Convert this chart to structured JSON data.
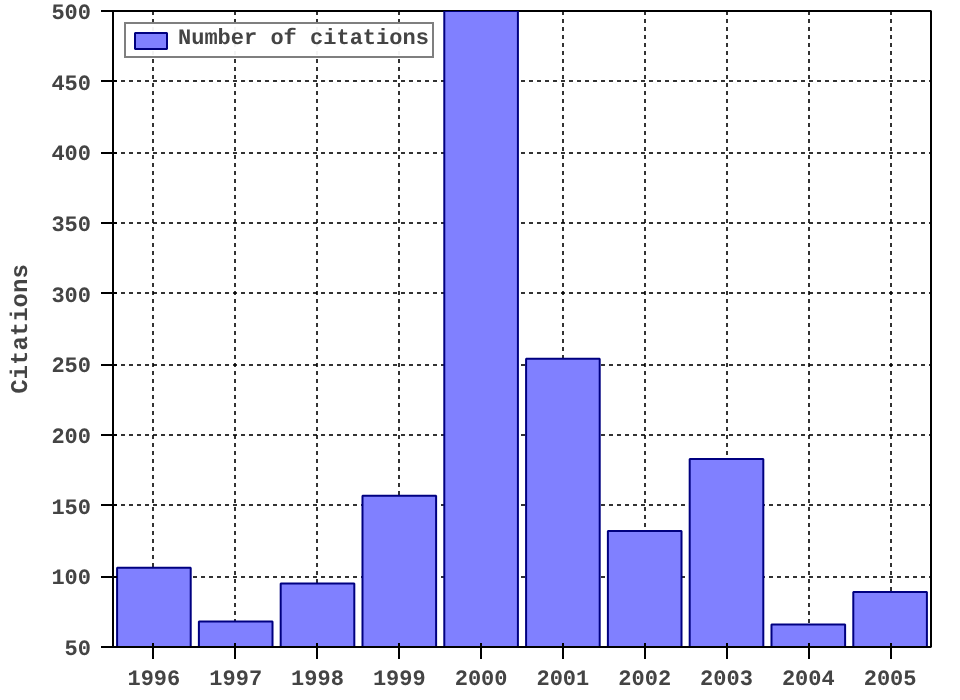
{
  "chart_data": {
    "type": "bar",
    "ylabel": "Citations",
    "x": [
      1996,
      1997,
      1998,
      1999,
      2000,
      2001,
      2002,
      2003,
      2004,
      2005
    ],
    "series": [
      {
        "name": "Number of citations",
        "color": "#8080ff",
        "values": [
          106,
          68,
          95,
          157,
          500,
          254,
          132,
          183,
          66,
          89
        ]
      }
    ],
    "xlim": [
      1995.5,
      2005.5
    ],
    "xticks": [
      1996,
      1997,
      1998,
      1999,
      2000,
      2001,
      2002,
      2003,
      2004,
      2005
    ],
    "ylim": [
      50,
      500
    ],
    "yticks": [
      50,
      100,
      150,
      200,
      250,
      300,
      350,
      400,
      450,
      500
    ],
    "grid": true,
    "legend": "top left"
  }
}
